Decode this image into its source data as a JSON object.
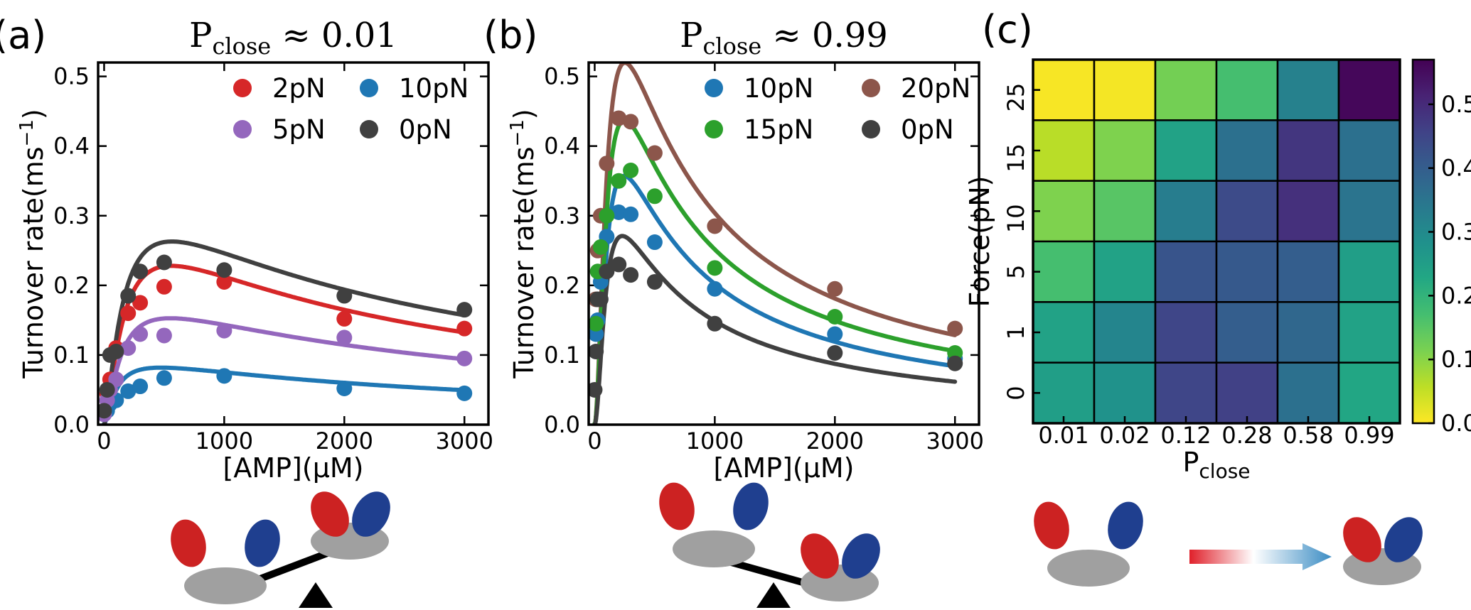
{
  "chart_data": [
    {
      "type": "line",
      "panel_label": "(a)",
      "title": "P_close ≈ 0.01",
      "title_main": "P",
      "title_sub": "close",
      "title_rest": " ≈ 0.01",
      "xlabel": "[AMP](μM)",
      "ylabel": "Turnover rate(ms⁻¹)",
      "ylabel_main": "Turnover rate(ms",
      "ylabel_sup": "−1",
      "ylabel_end": ")",
      "xlim": [
        -50,
        3200
      ],
      "ylim": [
        0,
        0.52
      ],
      "xticks": [
        0,
        1000,
        2000,
        3000
      ],
      "yticks": [
        0.0,
        0.1,
        0.2,
        0.3,
        0.4,
        0.5
      ],
      "ytick_labels": [
        "0.0",
        "0.1",
        "0.2",
        "0.3",
        "0.4",
        "0.5"
      ],
      "legend": "top-right, 2 columns",
      "series": [
        {
          "name": "2pN",
          "color": "#d62728",
          "x": [
            0,
            25,
            50,
            100,
            200,
            300,
            500,
            1000,
            2000,
            3000
          ],
          "y": [
            0.02,
            0.045,
            0.065,
            0.11,
            0.16,
            0.175,
            0.198,
            0.205,
            0.152,
            0.138
          ],
          "fit": {
            "Vmax": 0.36,
            "Km": 180,
            "Ki": 1800,
            "n": 1.4
          }
        },
        {
          "name": "10pN",
          "color": "#1f77b4",
          "x": [
            0,
            25,
            50,
            100,
            200,
            300,
            500,
            1000,
            2000,
            3000
          ],
          "y": [
            0.015,
            0.02,
            0.03,
            0.035,
            0.048,
            0.055,
            0.067,
            0.07,
            0.052,
            0.045
          ],
          "fit": {
            "Vmax": 0.11,
            "Km": 110,
            "Ki": 2500,
            "n": 1.4
          }
        },
        {
          "name": "5pN",
          "color": "#9467bd",
          "x": [
            0,
            25,
            50,
            100,
            200,
            300,
            500,
            1000,
            2000,
            3000
          ],
          "y": [
            0.015,
            0.035,
            0.05,
            0.065,
            0.11,
            0.13,
            0.128,
            0.135,
            0.125,
            0.095
          ],
          "fit": {
            "Vmax": 0.22,
            "Km": 150,
            "Ki": 2300,
            "n": 1.4
          }
        },
        {
          "name": "0pN",
          "color": "#404040",
          "x": [
            0,
            25,
            50,
            100,
            200,
            300,
            500,
            1000,
            2000,
            3000
          ],
          "y": [
            0.02,
            0.05,
            0.1,
            0.105,
            0.185,
            0.22,
            0.233,
            0.222,
            0.185,
            0.165
          ],
          "fit": {
            "Vmax": 0.4,
            "Km": 170,
            "Ki": 2000,
            "n": 1.4
          }
        }
      ]
    },
    {
      "type": "line",
      "panel_label": "(b)",
      "title": "P_close ≈ 0.99",
      "title_main": "P",
      "title_sub": "close",
      "title_rest": " ≈ 0.99",
      "xlabel": "[AMP](μM)",
      "ylabel": "Turnover rate(ms⁻¹)",
      "ylabel_main": "Turnover rate(ms",
      "ylabel_sup": "−1",
      "ylabel_end": ")",
      "xlim": [
        -50,
        3200
      ],
      "ylim": [
        0,
        0.52
      ],
      "xticks": [
        0,
        1000,
        2000,
        3000
      ],
      "yticks": [
        0.0,
        0.1,
        0.2,
        0.3,
        0.4,
        0.5
      ],
      "ytick_labels": [
        "0.0",
        "0.1",
        "0.2",
        "0.3",
        "0.4",
        "0.5"
      ],
      "legend": "top-right, 2 columns",
      "series": [
        {
          "name": "10pN",
          "color": "#1f77b4",
          "x": [
            10,
            25,
            50,
            100,
            200,
            300,
            500,
            1000,
            2000,
            3000
          ],
          "y": [
            0.13,
            0.15,
            0.205,
            0.27,
            0.305,
            0.302,
            0.262,
            0.195,
            0.13,
            0.095
          ],
          "fit": {
            "Vmax": 0.75,
            "Km": 120,
            "Ki": 380,
            "n": 1.8
          }
        },
        {
          "name": "20pN",
          "color": "#8c564b",
          "x": [
            10,
            25,
            50,
            100,
            200,
            300,
            500,
            1000,
            2000,
            3000
          ],
          "y": [
            0.18,
            0.25,
            0.3,
            0.375,
            0.44,
            0.435,
            0.39,
            0.285,
            0.195,
            0.138
          ],
          "fit": {
            "Vmax": 1.05,
            "Km": 120,
            "Ki": 420,
            "n": 1.8
          }
        },
        {
          "name": "15pN",
          "color": "#2ca02c",
          "x": [
            10,
            25,
            50,
            100,
            200,
            300,
            500,
            1000,
            2000,
            3000
          ],
          "y": [
            0.145,
            0.22,
            0.255,
            0.3,
            0.35,
            0.365,
            0.328,
            0.225,
            0.155,
            0.103
          ],
          "fit": {
            "Vmax": 0.9,
            "Km": 120,
            "Ki": 400,
            "n": 1.8
          }
        },
        {
          "name": "0pN",
          "color": "#404040",
          "x": [
            0,
            10,
            25,
            50,
            100,
            200,
            300,
            500,
            1000,
            2000,
            3000
          ],
          "y": [
            0.05,
            0.105,
            0.18,
            0.18,
            0.22,
            0.23,
            0.215,
            0.205,
            0.145,
            0.103,
            0.088
          ],
          "fit": {
            "Vmax": 0.55,
            "Km": 110,
            "Ki": 380,
            "n": 1.8
          }
        }
      ]
    },
    {
      "type": "heatmap",
      "panel_label": "(c)",
      "xlabel": "P_close",
      "xlabel_main": "P",
      "xlabel_sub": "close",
      "ylabel": "Force(pN)",
      "x_categories": [
        "0.01",
        "0.02",
        "0.12",
        "0.28",
        "0.58",
        "0.99"
      ],
      "y_categories": [
        "25",
        "15",
        "10",
        "5",
        "1",
        "0"
      ],
      "values": [
        [
          0.005,
          0.008,
          0.12,
          0.17,
          0.32,
          0.56
        ],
        [
          0.06,
          0.11,
          0.24,
          0.36,
          0.48,
          0.36
        ],
        [
          0.11,
          0.15,
          0.33,
          0.44,
          0.49,
          0.35
        ],
        [
          0.17,
          0.24,
          0.42,
          0.41,
          0.4,
          0.25
        ],
        [
          0.24,
          0.31,
          0.45,
          0.4,
          0.38,
          0.24
        ],
        [
          0.25,
          0.28,
          0.45,
          0.46,
          0.36,
          0.23
        ]
      ],
      "colorbar": {
        "range": [
          0,
          0.57
        ],
        "ticks": [
          0.0,
          0.1,
          0.2,
          0.3,
          0.4,
          0.5
        ],
        "tick_labels": [
          "0.0",
          "0.1",
          "0.2",
          "0.3",
          "0.4",
          "0.5"
        ],
        "colormap": "viridis_r"
      }
    }
  ],
  "illustration": {
    "colors": {
      "red_domain": "#cc2222",
      "blue_domain": "#1f3f8f",
      "base": "#a0a0a0",
      "fulcrum": "#000000",
      "lever": "#000000"
    }
  }
}
